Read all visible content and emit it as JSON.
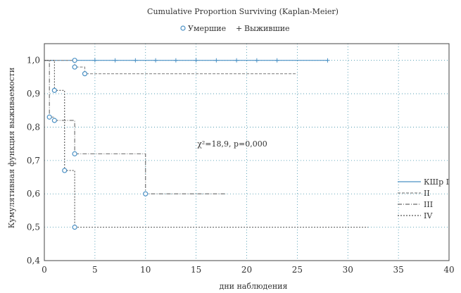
{
  "chart_data": {
    "type": "line",
    "title": "Cumulative Proportion Surviving (Kaplan-Meier)",
    "top_legend": {
      "complete_label": "Умершие",
      "censored_label": "Выжившие"
    },
    "xlabel": "дни наблюдения",
    "ylabel": "Кумулятивная функция выживаемости",
    "xlim": [
      0,
      40
    ],
    "ylim": [
      0.4,
      1.05
    ],
    "x_ticks": [
      0,
      5,
      10,
      15,
      20,
      25,
      30,
      35,
      40
    ],
    "y_ticks": [
      0.4,
      0.5,
      0.6,
      0.7,
      0.8,
      0.9,
      1.0
    ],
    "x_tick_labels": [
      "0",
      "5",
      "10",
      "15",
      "20",
      "25",
      "30",
      "35",
      "40"
    ],
    "y_tick_labels": [
      "0,4",
      "0,5",
      "0,6",
      "0,7",
      "0,8",
      "0,9",
      "1,0"
    ],
    "grid": true,
    "annotation": "χ²=18,9, p=0,000",
    "legend_position": "right",
    "series": [
      {
        "name": "КШр I",
        "color": "#4a90c4",
        "dash": "solid",
        "x": [
          0,
          3,
          3,
          28
        ],
        "y": [
          1.0,
          1.0,
          1.0,
          1.0
        ],
        "events": [
          {
            "x": 3,
            "y": 1.0
          }
        ],
        "censored": [
          {
            "x": 5,
            "y": 1.0
          },
          {
            "x": 7,
            "y": 1.0
          },
          {
            "x": 9,
            "y": 1.0
          },
          {
            "x": 11,
            "y": 1.0
          },
          {
            "x": 13,
            "y": 1.0
          },
          {
            "x": 15,
            "y": 1.0
          },
          {
            "x": 17,
            "y": 1.0
          },
          {
            "x": 19,
            "y": 1.0
          },
          {
            "x": 21,
            "y": 1.0
          },
          {
            "x": 23,
            "y": 1.0
          },
          {
            "x": 28,
            "y": 1.0
          }
        ]
      },
      {
        "name": "II",
        "color": "#888888",
        "dash": "4 2",
        "x": [
          0,
          3,
          3,
          4,
          4,
          25
        ],
        "y": [
          1.0,
          1.0,
          0.98,
          0.98,
          0.96,
          0.96
        ],
        "events": [
          {
            "x": 3,
            "y": 0.98
          },
          {
            "x": 4,
            "y": 0.96
          }
        ],
        "censored": []
      },
      {
        "name": "III",
        "color": "#6a6a6a",
        "dash": "6 2 1 2",
        "x": [
          0,
          0.5,
          0.5,
          1,
          1,
          3,
          3,
          10,
          10,
          18
        ],
        "y": [
          1.0,
          1.0,
          0.83,
          0.83,
          0.82,
          0.82,
          0.72,
          0.72,
          0.6,
          0.6
        ],
        "events": [
          {
            "x": 0.5,
            "y": 0.83
          },
          {
            "x": 1,
            "y": 0.82
          },
          {
            "x": 3,
            "y": 0.72
          },
          {
            "x": 10,
            "y": 0.6
          }
        ],
        "censored": []
      },
      {
        "name": "IV",
        "color": "#555555",
        "dash": "2 2",
        "x": [
          0,
          1,
          1,
          2,
          2,
          3,
          3,
          32
        ],
        "y": [
          1.0,
          1.0,
          0.91,
          0.91,
          0.67,
          0.67,
          0.5,
          0.5
        ],
        "events": [
          {
            "x": 1,
            "y": 0.91
          },
          {
            "x": 2,
            "y": 0.67
          },
          {
            "x": 3,
            "y": 0.5
          }
        ],
        "censored": []
      }
    ]
  }
}
